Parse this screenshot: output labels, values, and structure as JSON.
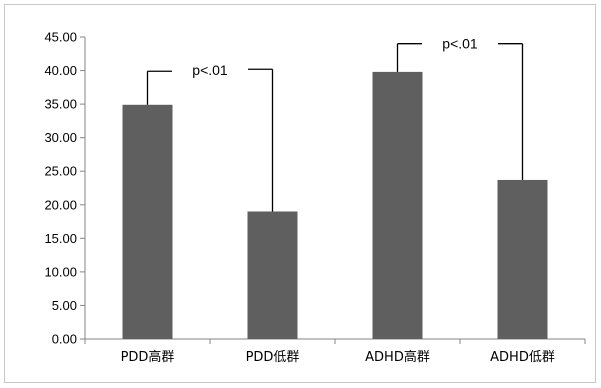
{
  "chart_data": {
    "type": "bar",
    "categories": [
      "PDD高群",
      "PDD低群",
      "ADHD高群",
      "ADHD低群"
    ],
    "values": [
      34.9,
      19.0,
      39.8,
      23.7
    ],
    "ylim": [
      0,
      45
    ],
    "yticks": [
      "0.00",
      "5.00",
      "10.00",
      "15.00",
      "20.00",
      "25.00",
      "30.00",
      "35.00",
      "40.00",
      "45.00"
    ],
    "ytick_values": [
      0,
      5,
      10,
      15,
      20,
      25,
      30,
      35,
      40,
      45
    ],
    "grid": false,
    "legend": "none",
    "bar_color": "#5f5f5f",
    "annotations": [
      {
        "text": "p<.01",
        "from": 0,
        "to": 1,
        "left_y": 39.9,
        "right_y": 40.2,
        "left_bottom": 34.9,
        "right_bottom": 19.0
      },
      {
        "text": "p<.01",
        "from": 2,
        "to": 3,
        "left_y": 44.0,
        "right_y": 44.0,
        "left_bottom": 39.8,
        "right_bottom": 23.7
      }
    ]
  }
}
